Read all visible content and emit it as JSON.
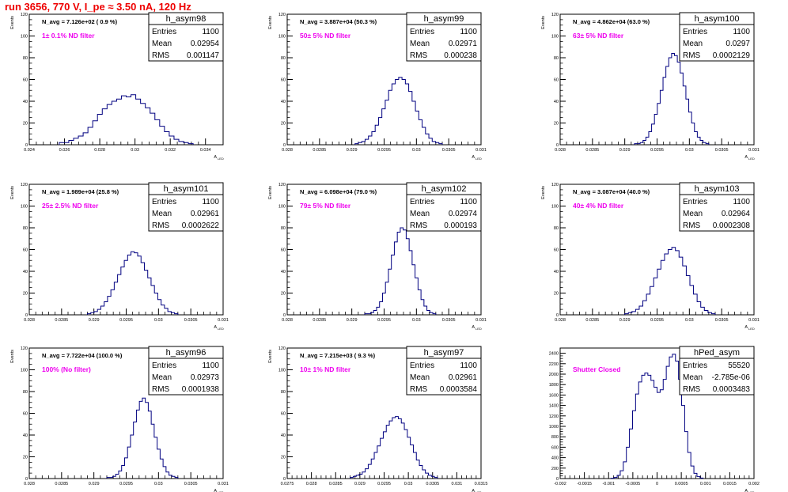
{
  "page_title": "run 3656,   770 V, I_pe ≈ 3.50 nA, 120 Hz",
  "stats_labels": {
    "entries": "Entries",
    "mean": "Mean",
    "rms": "RMS"
  },
  "colors": {
    "histogram_line": "#000080",
    "annotation": "#ee00ee",
    "title_red": "#ee0000",
    "axis": "#000000"
  },
  "chart_data": [
    {
      "type": "bar",
      "title": "h_asym98",
      "xlabel": "A",
      "xlabel_sub": "LED",
      "ylabel": "Events",
      "xlim": [
        0.024,
        0.035
      ],
      "ylim": [
        0,
        120
      ],
      "xticks": [
        "0.024",
        "0.026",
        "0.028",
        "0.03",
        "0.032",
        "0.034"
      ],
      "xtick_values": [
        0.024,
        0.026,
        0.028,
        0.03,
        0.032,
        0.034
      ],
      "yticks": [
        "0",
        "20",
        "40",
        "60",
        "80",
        "100",
        "120"
      ],
      "ytick_values": [
        0,
        20,
        40,
        60,
        80,
        100,
        120
      ],
      "navg": "N_avg = 7.126e+02 ( 0.9 %)",
      "filter": "1± 0.1% ND filter",
      "stats": {
        "entries": "1100",
        "mean": "0.02954",
        "rms": "0.001147"
      },
      "values": [
        2,
        2,
        4,
        6,
        8,
        11,
        16,
        22,
        28,
        33,
        37,
        40,
        42,
        45,
        44,
        46,
        42,
        38,
        34,
        29,
        23,
        17,
        12,
        8,
        5,
        3,
        2,
        1
      ],
      "x_min": 0.0257,
      "x_max": 0.0333
    },
    {
      "type": "bar",
      "title": "h_asym99",
      "xlabel": "A",
      "xlabel_sub": "LED",
      "ylabel": "Events",
      "xlim": [
        0.028,
        0.031
      ],
      "ylim": [
        0,
        120
      ],
      "xticks": [
        "0.028",
        "0.0285",
        "0.029",
        "0.0295",
        "0.03",
        "0.0305",
        "0.031"
      ],
      "xtick_values": [
        0.028,
        0.0285,
        0.029,
        0.0295,
        0.03,
        0.0305,
        0.031
      ],
      "yticks": [
        "0",
        "20",
        "40",
        "60",
        "80",
        "100",
        "120"
      ],
      "ytick_values": [
        0,
        20,
        40,
        60,
        80,
        100,
        120
      ],
      "navg": "N_avg = 3.887e+04 (50.3 %)",
      "filter": "50± 5% ND filter",
      "stats": {
        "entries": "1100",
        "mean": "0.02971",
        "rms": "0.000238"
      },
      "values": [
        1,
        2,
        3,
        5,
        8,
        12,
        18,
        25,
        33,
        41,
        50,
        56,
        60,
        62,
        60,
        56,
        49,
        40,
        31,
        23,
        16,
        10,
        6,
        3,
        2,
        1
      ],
      "x_min": 0.02905,
      "x_max": 0.0304
    },
    {
      "type": "bar",
      "title": "h_asym100",
      "xlabel": "A",
      "xlabel_sub": "LED",
      "ylabel": "Events",
      "xlim": [
        0.028,
        0.031
      ],
      "ylim": [
        0,
        120
      ],
      "xticks": [
        "0.028",
        "0.0285",
        "0.029",
        "0.0295",
        "0.03",
        "0.0305",
        "0.031"
      ],
      "xtick_values": [
        0.028,
        0.0285,
        0.029,
        0.0295,
        0.03,
        0.0305,
        0.031
      ],
      "yticks": [
        "0",
        "20",
        "40",
        "60",
        "80",
        "100",
        "120"
      ],
      "ytick_values": [
        0,
        20,
        40,
        60,
        80,
        100,
        120
      ],
      "navg": "N_avg = 4.862e+04 (63.0 %)",
      "filter": "63± 5% ND filter",
      "stats": {
        "entries": "1100",
        "mean": "0.0297",
        "rms": "0.0002129"
      },
      "values": [
        1,
        1,
        2,
        4,
        7,
        12,
        19,
        28,
        38,
        50,
        62,
        72,
        80,
        84,
        82,
        76,
        66,
        54,
        42,
        30,
        20,
        12,
        7,
        4,
        2,
        1
      ],
      "x_min": 0.02915,
      "x_max": 0.0303
    },
    {
      "type": "bar",
      "title": "h_asym101",
      "xlabel": "A",
      "xlabel_sub": "LED",
      "ylabel": "Events",
      "xlim": [
        0.028,
        0.031
      ],
      "ylim": [
        0,
        120
      ],
      "xticks": [
        "0.028",
        "0.0285",
        "0.029",
        "0.0295",
        "0.03",
        "0.0305",
        "0.031"
      ],
      "xtick_values": [
        0.028,
        0.0285,
        0.029,
        0.0295,
        0.03,
        0.0305,
        0.031
      ],
      "yticks": [
        "0",
        "20",
        "40",
        "60",
        "80",
        "100",
        "120"
      ],
      "ytick_values": [
        0,
        20,
        40,
        60,
        80,
        100,
        120
      ],
      "navg": "N_avg = 1.989e+04 (25.8 %)",
      "filter": "25± 2.5% ND filter",
      "stats": {
        "entries": "1100",
        "mean": "0.02961",
        "rms": "0.0002622"
      },
      "values": [
        1,
        2,
        3,
        5,
        8,
        12,
        17,
        23,
        30,
        37,
        44,
        50,
        55,
        58,
        57,
        54,
        48,
        41,
        34,
        27,
        20,
        14,
        9,
        6,
        3,
        2,
        1
      ],
      "x_min": 0.0289,
      "x_max": 0.0303
    },
    {
      "type": "bar",
      "title": "h_asym102",
      "xlabel": "A",
      "xlabel_sub": "LED",
      "ylabel": "Events",
      "xlim": [
        0.028,
        0.031
      ],
      "ylim": [
        0,
        120
      ],
      "xticks": [
        "0.028",
        "0.0285",
        "0.029",
        "0.0295",
        "0.03",
        "0.0305",
        "0.031"
      ],
      "xtick_values": [
        0.028,
        0.0285,
        0.029,
        0.0295,
        0.03,
        0.0305,
        0.031
      ],
      "yticks": [
        "0",
        "20",
        "40",
        "60",
        "80",
        "100",
        "120"
      ],
      "ytick_values": [
        0,
        20,
        40,
        60,
        80,
        100,
        120
      ],
      "navg": "N_avg = 6.098e+04 (79.0 %)",
      "filter": "79± 5% ND filter",
      "stats": {
        "entries": "1100",
        "mean": "0.02974",
        "rms": "0.000193"
      },
      "values": [
        1,
        1,
        2,
        4,
        7,
        12,
        20,
        30,
        42,
        55,
        67,
        76,
        80,
        78,
        70,
        59,
        46,
        34,
        23,
        14,
        8,
        4,
        2,
        1
      ],
      "x_min": 0.0292,
      "x_max": 0.0303
    },
    {
      "type": "bar",
      "title": "h_asym103",
      "xlabel": "A",
      "xlabel_sub": "LED",
      "ylabel": "Events",
      "xlim": [
        0.028,
        0.031
      ],
      "ylim": [
        0,
        120
      ],
      "xticks": [
        "0.028",
        "0.0285",
        "0.029",
        "0.0295",
        "0.03",
        "0.0305",
        "0.031"
      ],
      "xtick_values": [
        0.028,
        0.0285,
        0.029,
        0.0295,
        0.03,
        0.0305,
        0.031
      ],
      "yticks": [
        "0",
        "20",
        "40",
        "60",
        "80",
        "100",
        "120"
      ],
      "ytick_values": [
        0,
        20,
        40,
        60,
        80,
        100,
        120
      ],
      "navg": "N_avg = 3.087e+04 (40.0 %)",
      "filter": "40± 4% ND filter",
      "stats": {
        "entries": "1100",
        "mean": "0.02964",
        "rms": "0.0002308"
      },
      "values": [
        1,
        2,
        3,
        5,
        8,
        13,
        19,
        26,
        34,
        42,
        50,
        56,
        60,
        62,
        59,
        53,
        45,
        36,
        27,
        19,
        12,
        7,
        4,
        2,
        1
      ],
      "x_min": 0.029,
      "x_max": 0.0304
    },
    {
      "type": "bar",
      "title": "h_asym96",
      "xlabel": "A",
      "xlabel_sub": "LED",
      "ylabel": "Events",
      "xlim": [
        0.028,
        0.031
      ],
      "ylim": [
        0,
        120
      ],
      "xticks": [
        "0.028",
        "0.0285",
        "0.029",
        "0.0295",
        "0.03",
        "0.0305",
        "0.031"
      ],
      "xtick_values": [
        0.028,
        0.0285,
        0.029,
        0.0295,
        0.03,
        0.0305,
        0.031
      ],
      "yticks": [
        "0",
        "20",
        "40",
        "60",
        "80",
        "100",
        "120"
      ],
      "ytick_values": [
        0,
        20,
        40,
        60,
        80,
        100,
        120
      ],
      "navg": "N_avg = 7.722e+04 (100.0 %)",
      "filter": "100% (No filter)",
      "stats": {
        "entries": "1100",
        "mean": "0.02973",
        "rms": "0.0001938"
      },
      "values": [
        1,
        1,
        2,
        4,
        7,
        12,
        19,
        29,
        40,
        52,
        63,
        71,
        74,
        70,
        62,
        50,
        38,
        27,
        18,
        11,
        6,
        3,
        2,
        1
      ],
      "x_min": 0.0292,
      "x_max": 0.0303
    },
    {
      "type": "bar",
      "title": "h_asym97",
      "xlabel": "A",
      "xlabel_sub": "LED",
      "ylabel": "Events",
      "xlim": [
        0.0275,
        0.0315
      ],
      "ylim": [
        0,
        120
      ],
      "xticks": [
        "0.0275",
        "0.028",
        "0.0285",
        "0.029",
        "0.0295",
        "0.03",
        "0.0305",
        "0.031",
        "0.0315"
      ],
      "xtick_values": [
        0.0275,
        0.028,
        0.0285,
        0.029,
        0.0295,
        0.03,
        0.0305,
        0.031,
        0.0315
      ],
      "yticks": [
        "0",
        "20",
        "40",
        "60",
        "80",
        "100",
        "120"
      ],
      "ytick_values": [
        0,
        20,
        40,
        60,
        80,
        100,
        120
      ],
      "navg": "N_avg = 7.215e+03 ( 9.3 %)",
      "filter": "10± 1% ND filter",
      "stats": {
        "entries": "1100",
        "mean": "0.02961",
        "rms": "0.0003584"
      },
      "values": [
        1,
        2,
        3,
        4,
        6,
        9,
        13,
        18,
        24,
        30,
        37,
        43,
        49,
        53,
        56,
        57,
        55,
        51,
        45,
        38,
        31,
        24,
        17,
        12,
        8,
        5,
        3,
        2,
        1
      ],
      "x_min": 0.0288,
      "x_max": 0.0306
    },
    {
      "type": "bar",
      "title": "hPed_asym",
      "xlabel": "A",
      "xlabel_sub": "LED",
      "ylabel": "",
      "xlim": [
        -0.002,
        0.002
      ],
      "ylim": [
        0,
        2500
      ],
      "xticks": [
        "-0.002",
        "-0.0015",
        "-0.001",
        "-0.0005",
        "0",
        "0.0005",
        "0.001",
        "0.0015",
        "0.002"
      ],
      "xtick_values": [
        -0.002,
        -0.0015,
        -0.001,
        -0.0005,
        0,
        0.0005,
        0.001,
        0.0015,
        0.002
      ],
      "yticks": [
        "0",
        "200",
        "400",
        "600",
        "800",
        "1000",
        "1200",
        "1400",
        "1600",
        "1800",
        "2000",
        "2200",
        "2400"
      ],
      "ytick_values": [
        0,
        200,
        400,
        600,
        800,
        1000,
        1200,
        1400,
        1600,
        1800,
        2000,
        2200,
        2400
      ],
      "navg": "",
      "filter": "Shutter Closed",
      "stats": {
        "entries": "55520",
        "mean": "-2.785e-06",
        "rms": "0.0003483"
      },
      "values": [
        5,
        20,
        60,
        150,
        320,
        600,
        950,
        1300,
        1620,
        1850,
        1980,
        2020,
        1980,
        1880,
        1750,
        1650,
        1700,
        1900,
        2150,
        2330,
        2380,
        2250,
        1900,
        1400,
        900,
        500,
        240,
        100,
        40,
        10
      ],
      "x_min": -0.00095,
      "x_max": 0.00095
    }
  ]
}
